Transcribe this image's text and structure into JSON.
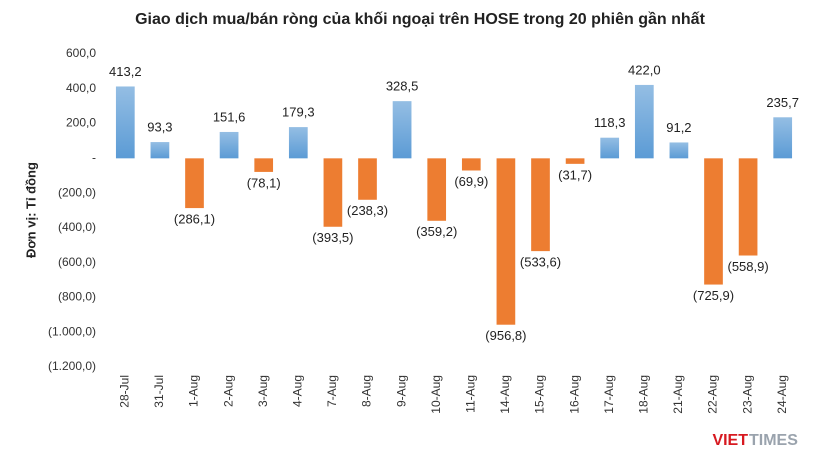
{
  "chart_data": {
    "type": "bar",
    "title": "Giao dịch mua/bán ròng của khối ngoại trên HOSE trong 20 phiên gần nhất",
    "y_label": "Đơn vị: Tỉ đồng",
    "categories": [
      "28-Jul",
      "31-Jul",
      "1-Aug",
      "2-Aug",
      "3-Aug",
      "4-Aug",
      "7-Aug",
      "8-Aug",
      "9-Aug",
      "10-Aug",
      "11-Aug",
      "14-Aug",
      "15-Aug",
      "16-Aug",
      "17-Aug",
      "18-Aug",
      "21-Aug",
      "22-Aug",
      "23-Aug",
      "24-Aug"
    ],
    "values": [
      413.2,
      93.3,
      -286.1,
      151.6,
      -78.1,
      179.3,
      -393.5,
      -238.3,
      328.5,
      -359.2,
      -69.9,
      -956.8,
      -533.6,
      -31.7,
      118.3,
      422.0,
      91.2,
      -725.9,
      -558.9,
      235.7
    ],
    "value_labels": [
      "413,2",
      "93,3",
      "(286,1)",
      "151,6",
      "(78,1)",
      "179,3",
      "(393,5)",
      "(238,3)",
      "328,5",
      "(359,2)",
      "(69,9)",
      "(956,8)",
      "(533,6)",
      "(31,7)",
      "118,3",
      "422,0",
      "91,2",
      "(725,9)",
      "(558,9)",
      "235,7"
    ],
    "positive_color": "#5b9bd5",
    "negative_color": "#ed7d31",
    "ylim": [
      -1200,
      600
    ],
    "yticks": [
      {
        "value": 600,
        "label": "600,0"
      },
      {
        "value": 400,
        "label": "400,0"
      },
      {
        "value": 200,
        "label": "200,0"
      },
      {
        "value": 0,
        "label": "-"
      },
      {
        "value": -200,
        "label": "(200,0)"
      },
      {
        "value": -400,
        "label": "(400,0)"
      },
      {
        "value": -600,
        "label": "(600,0)"
      },
      {
        "value": -800,
        "label": "(800,0)"
      },
      {
        "value": -1000,
        "label": "(1.000,0)"
      },
      {
        "value": -1200,
        "label": "(1.200,0)"
      }
    ],
    "grid": false
  },
  "logo": {
    "part1": "VIET",
    "part2": "TIMES"
  }
}
